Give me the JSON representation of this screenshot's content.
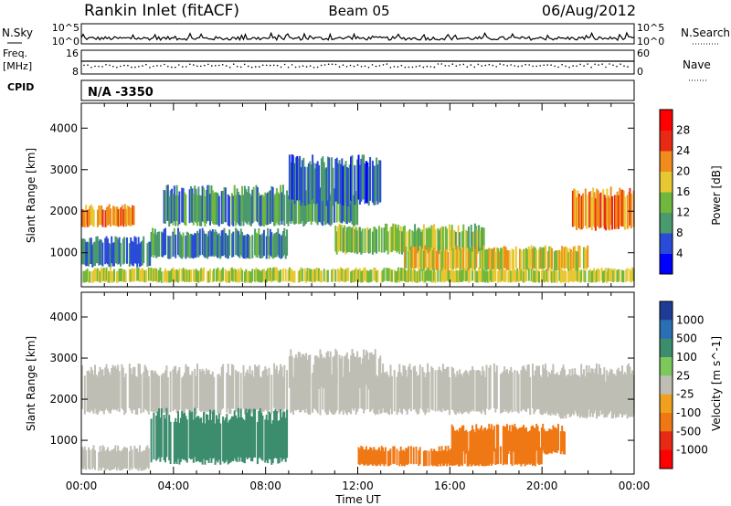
{
  "header": {
    "station": "Rankin Inlet (fitACF)",
    "beam": "Beam 05",
    "date": "06/Aug/2012"
  },
  "noise_panel": {
    "left_label": "N.Sky",
    "right_label": "N.Search",
    "tick_top": "10^5",
    "tick_bottom": "10^0"
  },
  "freq_panel": {
    "left_label_1": "Freq.",
    "left_label_2": "[MHz]",
    "left_tick_top": "16",
    "left_tick_bottom": "8",
    "right_label": "Nave",
    "right_tick_top": "60",
    "right_tick_bottom": "0"
  },
  "cpid_panel": {
    "label": "CPID",
    "value": "N/A -3350"
  },
  "colors": {
    "ground_scatter": "#bebeb4",
    "power_scale": [
      "#0000ff",
      "#2a4bd7",
      "#4a9a6e",
      "#6fb83d",
      "#e8c832",
      "#f08c1c",
      "#e82a14",
      "#ff0000"
    ],
    "velocity_scale": [
      "#1e3c96",
      "#2a6eb4",
      "#3c8c6e",
      "#7cc85a",
      "#bebeb4",
      "#f0a01e",
      "#f07814",
      "#e82a14",
      "#ff0000"
    ]
  },
  "chart_data": [
    {
      "type": "heatmap",
      "name": "power",
      "ylabel": "Slant Range [km]",
      "ylim": [
        180,
        4600
      ],
      "yticks": [
        "1000",
        "2000",
        "3000",
        "4000"
      ],
      "xlim": [
        "00:00",
        "24:00"
      ],
      "colorbar_label": "Power [dB]",
      "colorbar_ticks": [
        "4",
        "8",
        "12",
        "16",
        "20",
        "24",
        "28"
      ],
      "colorbar_range": [
        0,
        32
      ],
      "bands": [
        {
          "t0": 0,
          "t1": 2.3,
          "r0": 1650,
          "r1": 2100,
          "v": 22
        },
        {
          "t0": 0,
          "t1": 24,
          "r0": 300,
          "r1": 600,
          "v": 16
        },
        {
          "t0": 3.5,
          "t1": 12,
          "r0": 1700,
          "r1": 2500,
          "v": 10
        },
        {
          "t0": 9,
          "t1": 13,
          "r0": 2200,
          "r1": 3200,
          "v": 7
        },
        {
          "t0": 11,
          "t1": 17.5,
          "r0": 1000,
          "r1": 1600,
          "v": 14
        },
        {
          "t0": 14,
          "t1": 22,
          "r0": 600,
          "r1": 1100,
          "v": 18
        },
        {
          "t0": 21.3,
          "t1": 24,
          "r0": 1600,
          "r1": 2450,
          "v": 22
        },
        {
          "t0": 3,
          "t1": 9,
          "r0": 900,
          "r1": 1500,
          "v": 9
        },
        {
          "t0": 0,
          "t1": 3,
          "r0": 700,
          "r1": 1300,
          "v": 8
        }
      ]
    },
    {
      "type": "heatmap",
      "name": "velocity",
      "xlabel": "Time UT",
      "ylabel": "Slant Range [km]",
      "ylim": [
        180,
        4600
      ],
      "yticks": [
        "1000",
        "2000",
        "3000",
        "4000"
      ],
      "xticks": [
        "00:00",
        "04:00",
        "08:00",
        "12:00",
        "16:00",
        "20:00",
        "00:00"
      ],
      "xlim": [
        "00:00",
        "24:00"
      ],
      "colorbar_label": "Velocity [m s^-1]",
      "colorbar_ticks": [
        "1000",
        "500",
        "100",
        "25",
        "-25",
        "-100",
        "-500",
        "-1000"
      ],
      "bands": [
        {
          "t0": 0,
          "t1": 24,
          "r0": 1700,
          "r1": 2700,
          "v": 0
        },
        {
          "t0": 0,
          "t1": 3,
          "r0": 300,
          "r1": 800,
          "v": 0
        },
        {
          "t0": 3,
          "t1": 9,
          "r0": 500,
          "r1": 1600,
          "v": 300
        },
        {
          "t0": 12,
          "t1": 20,
          "r0": 400,
          "r1": 800,
          "v": -300
        },
        {
          "t0": 16,
          "t1": 21,
          "r0": 700,
          "r1": 1300,
          "v": -200
        },
        {
          "t0": 9,
          "t1": 13,
          "r0": 2300,
          "r1": 3100,
          "v": 0
        },
        {
          "t0": 20,
          "t1": 24,
          "r0": 1600,
          "r1": 2500,
          "v": 0
        }
      ]
    }
  ]
}
